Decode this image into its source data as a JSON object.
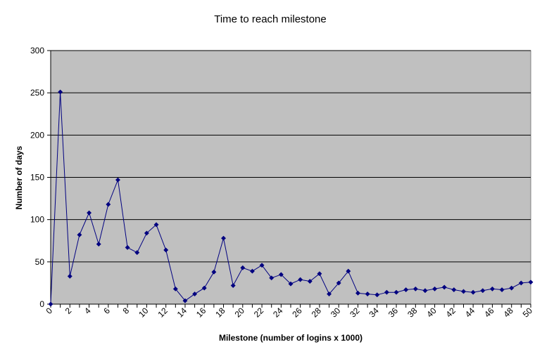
{
  "chart_data": {
    "type": "line",
    "title": "Time to reach milestone",
    "xlabel": "Milestone (number of logins x 1000)",
    "ylabel": "Number of days",
    "xlim": [
      0,
      50
    ],
    "ylim": [
      0,
      300
    ],
    "y_ticks": [
      0,
      50,
      100,
      150,
      200,
      250,
      300
    ],
    "x_ticks": [
      0,
      2,
      4,
      6,
      8,
      10,
      12,
      14,
      16,
      18,
      20,
      22,
      24,
      26,
      28,
      30,
      32,
      34,
      36,
      38,
      40,
      42,
      44,
      46,
      48,
      50
    ],
    "grid": true,
    "legend": "none",
    "plot_background": "#c0c0c0",
    "series_color": "#000080",
    "series": [
      {
        "x": [
          0,
          1,
          2,
          3,
          4,
          5,
          6,
          7,
          8,
          9,
          10,
          11,
          12,
          13,
          14,
          15,
          16,
          17,
          18,
          19,
          20,
          21,
          22,
          23,
          24,
          25,
          26,
          27,
          28,
          29,
          30,
          31,
          32,
          33,
          34,
          35,
          36,
          37,
          38,
          39,
          40,
          41,
          42,
          43,
          44,
          45,
          46,
          47,
          48,
          49,
          50
        ],
        "values": [
          0,
          251,
          33,
          82,
          108,
          71,
          118,
          147,
          67,
          61,
          84,
          94,
          64,
          18,
          4,
          12,
          19,
          38,
          78,
          22,
          43,
          39,
          46,
          31,
          35,
          24,
          29,
          27,
          36,
          12,
          25,
          39,
          13,
          12,
          11,
          14,
          14,
          17,
          18,
          16,
          18,
          20,
          17,
          15,
          14,
          16,
          18,
          17,
          19,
          25,
          26
        ]
      }
    ]
  }
}
